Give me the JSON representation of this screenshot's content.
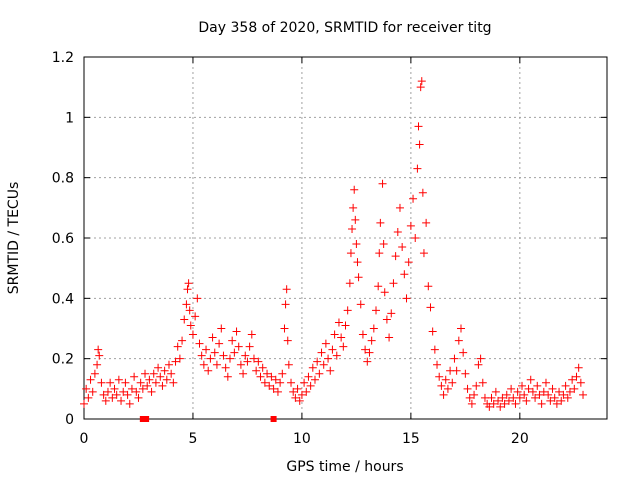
{
  "chart_data": {
    "type": "scatter",
    "title": "Day 358 of 2020, SRMTID for receiver titg",
    "xlabel": "GPS time / hours",
    "ylabel": "SRMTID / TECUs",
    "xlim": [
      0,
      24
    ],
    "ylim": [
      0,
      1.2
    ],
    "xticks": [
      0,
      5,
      10,
      15,
      20
    ],
    "xtick_labels": [
      "0",
      "5",
      "10",
      "15",
      "20"
    ],
    "yticks": [
      0,
      0.2,
      0.4,
      0.6,
      0.8,
      1,
      1.2
    ],
    "ytick_labels": [
      "0",
      "0.2",
      "0.4",
      "0.6",
      "0.8",
      "1",
      "1.2"
    ],
    "grid": true,
    "marker": "+",
    "series_color": "#ff0000",
    "series": [
      {
        "name": "SRMTID",
        "points": [
          [
            0.0,
            0.05
          ],
          [
            0.1,
            0.1
          ],
          [
            0.2,
            0.07
          ],
          [
            0.3,
            0.13
          ],
          [
            0.4,
            0.09
          ],
          [
            0.5,
            0.15
          ],
          [
            0.6,
            0.18
          ],
          [
            0.65,
            0.23
          ],
          [
            0.7,
            0.21
          ],
          [
            0.8,
            0.12
          ],
          [
            0.9,
            0.08
          ],
          [
            1.0,
            0.06
          ],
          [
            1.1,
            0.09
          ],
          [
            1.2,
            0.12
          ],
          [
            1.3,
            0.07
          ],
          [
            1.4,
            0.1
          ],
          [
            1.5,
            0.08
          ],
          [
            1.6,
            0.13
          ],
          [
            1.7,
            0.06
          ],
          [
            1.8,
            0.09
          ],
          [
            1.9,
            0.12
          ],
          [
            2.0,
            0.08
          ],
          [
            2.1,
            0.05
          ],
          [
            2.2,
            0.1
          ],
          [
            2.3,
            0.14
          ],
          [
            2.4,
            0.09
          ],
          [
            2.5,
            0.07
          ],
          [
            2.6,
            0.12
          ],
          [
            2.7,
            0.1
          ],
          [
            2.8,
            0.15
          ],
          [
            2.9,
            0.11
          ],
          [
            3.0,
            0.13
          ],
          [
            3.1,
            0.09
          ],
          [
            3.2,
            0.15
          ],
          [
            3.3,
            0.12
          ],
          [
            3.4,
            0.17
          ],
          [
            3.5,
            0.14
          ],
          [
            3.6,
            0.11
          ],
          [
            3.7,
            0.16
          ],
          [
            3.8,
            0.13
          ],
          [
            3.9,
            0.18
          ],
          [
            4.0,
            0.15
          ],
          [
            4.1,
            0.12
          ],
          [
            4.2,
            0.19
          ],
          [
            4.3,
            0.24
          ],
          [
            4.4,
            0.2
          ],
          [
            4.5,
            0.26
          ],
          [
            4.6,
            0.33
          ],
          [
            4.7,
            0.38
          ],
          [
            4.75,
            0.43
          ],
          [
            4.8,
            0.45
          ],
          [
            4.85,
            0.36
          ],
          [
            4.9,
            0.31
          ],
          [
            5.0,
            0.28
          ],
          [
            5.1,
            0.34
          ],
          [
            5.2,
            0.4
          ],
          [
            5.3,
            0.25
          ],
          [
            5.4,
            0.21
          ],
          [
            5.5,
            0.18
          ],
          [
            5.6,
            0.23
          ],
          [
            5.7,
            0.16
          ],
          [
            5.8,
            0.2
          ],
          [
            5.9,
            0.27
          ],
          [
            6.0,
            0.22
          ],
          [
            6.1,
            0.18
          ],
          [
            6.2,
            0.25
          ],
          [
            6.3,
            0.3
          ],
          [
            6.4,
            0.21
          ],
          [
            6.5,
            0.17
          ],
          [
            6.6,
            0.14
          ],
          [
            6.7,
            0.2
          ],
          [
            6.8,
            0.26
          ],
          [
            6.9,
            0.22
          ],
          [
            7.0,
            0.29
          ],
          [
            7.1,
            0.24
          ],
          [
            7.2,
            0.18
          ],
          [
            7.3,
            0.15
          ],
          [
            7.4,
            0.21
          ],
          [
            7.5,
            0.19
          ],
          [
            7.6,
            0.24
          ],
          [
            7.7,
            0.28
          ],
          [
            7.8,
            0.2
          ],
          [
            7.9,
            0.16
          ],
          [
            8.0,
            0.19
          ],
          [
            8.1,
            0.14
          ],
          [
            8.2,
            0.17
          ],
          [
            8.3,
            0.12
          ],
          [
            8.4,
            0.15
          ],
          [
            8.5,
            0.11
          ],
          [
            8.6,
            0.14
          ],
          [
            8.7,
            0.1
          ],
          [
            8.8,
            0.13
          ],
          [
            8.9,
            0.09
          ],
          [
            9.0,
            0.12
          ],
          [
            9.1,
            0.15
          ],
          [
            9.2,
            0.3
          ],
          [
            9.25,
            0.38
          ],
          [
            9.3,
            0.43
          ],
          [
            9.35,
            0.26
          ],
          [
            9.4,
            0.18
          ],
          [
            9.5,
            0.12
          ],
          [
            9.6,
            0.09
          ],
          [
            9.7,
            0.07
          ],
          [
            9.8,
            0.1
          ],
          [
            9.9,
            0.06
          ],
          [
            10.0,
            0.08
          ],
          [
            10.1,
            0.12
          ],
          [
            10.2,
            0.09
          ],
          [
            10.3,
            0.14
          ],
          [
            10.4,
            0.11
          ],
          [
            10.5,
            0.17
          ],
          [
            10.6,
            0.13
          ],
          [
            10.7,
            0.19
          ],
          [
            10.8,
            0.15
          ],
          [
            10.9,
            0.22
          ],
          [
            11.0,
            0.18
          ],
          [
            11.1,
            0.25
          ],
          [
            11.2,
            0.2
          ],
          [
            11.3,
            0.16
          ],
          [
            11.4,
            0.23
          ],
          [
            11.5,
            0.28
          ],
          [
            11.6,
            0.21
          ],
          [
            11.7,
            0.32
          ],
          [
            11.8,
            0.27
          ],
          [
            11.9,
            0.24
          ],
          [
            12.0,
            0.31
          ],
          [
            12.1,
            0.36
          ],
          [
            12.2,
            0.45
          ],
          [
            12.25,
            0.55
          ],
          [
            12.3,
            0.63
          ],
          [
            12.35,
            0.7
          ],
          [
            12.4,
            0.76
          ],
          [
            12.45,
            0.66
          ],
          [
            12.5,
            0.58
          ],
          [
            12.55,
            0.52
          ],
          [
            12.6,
            0.47
          ],
          [
            12.7,
            0.38
          ],
          [
            12.8,
            0.28
          ],
          [
            12.9,
            0.23
          ],
          [
            13.0,
            0.19
          ],
          [
            13.1,
            0.22
          ],
          [
            13.2,
            0.26
          ],
          [
            13.3,
            0.3
          ],
          [
            13.4,
            0.36
          ],
          [
            13.5,
            0.44
          ],
          [
            13.55,
            0.55
          ],
          [
            13.6,
            0.65
          ],
          [
            13.7,
            0.78
          ],
          [
            13.75,
            0.58
          ],
          [
            13.8,
            0.42
          ],
          [
            13.9,
            0.33
          ],
          [
            14.0,
            0.27
          ],
          [
            14.1,
            0.35
          ],
          [
            14.2,
            0.45
          ],
          [
            14.3,
            0.54
          ],
          [
            14.4,
            0.62
          ],
          [
            14.5,
            0.7
          ],
          [
            14.6,
            0.57
          ],
          [
            14.7,
            0.48
          ],
          [
            14.8,
            0.4
          ],
          [
            14.9,
            0.52
          ],
          [
            15.0,
            0.64
          ],
          [
            15.1,
            0.73
          ],
          [
            15.2,
            0.6
          ],
          [
            15.3,
            0.83
          ],
          [
            15.35,
            0.97
          ],
          [
            15.4,
            0.91
          ],
          [
            15.45,
            1.1
          ],
          [
            15.5,
            1.12
          ],
          [
            15.55,
            0.75
          ],
          [
            15.6,
            0.55
          ],
          [
            15.7,
            0.65
          ],
          [
            15.8,
            0.44
          ],
          [
            15.9,
            0.37
          ],
          [
            16.0,
            0.29
          ],
          [
            16.1,
            0.23
          ],
          [
            16.2,
            0.18
          ],
          [
            16.3,
            0.14
          ],
          [
            16.4,
            0.11
          ],
          [
            16.5,
            0.08
          ],
          [
            16.6,
            0.13
          ],
          [
            16.7,
            0.1
          ],
          [
            16.8,
            0.16
          ],
          [
            16.9,
            0.12
          ],
          [
            17.0,
            0.2
          ],
          [
            17.1,
            0.16
          ],
          [
            17.2,
            0.26
          ],
          [
            17.3,
            0.3
          ],
          [
            17.4,
            0.22
          ],
          [
            17.5,
            0.15
          ],
          [
            17.6,
            0.1
          ],
          [
            17.7,
            0.07
          ],
          [
            17.8,
            0.05
          ],
          [
            17.9,
            0.08
          ],
          [
            18.0,
            0.11
          ],
          [
            18.1,
            0.18
          ],
          [
            18.2,
            0.2
          ],
          [
            18.3,
            0.12
          ],
          [
            18.4,
            0.07
          ],
          [
            18.5,
            0.05
          ],
          [
            18.6,
            0.04
          ],
          [
            18.7,
            0.07
          ],
          [
            18.8,
            0.05
          ],
          [
            18.9,
            0.09
          ],
          [
            19.0,
            0.06
          ],
          [
            19.1,
            0.04
          ],
          [
            19.2,
            0.07
          ],
          [
            19.3,
            0.05
          ],
          [
            19.4,
            0.08
          ],
          [
            19.5,
            0.06
          ],
          [
            19.6,
            0.1
          ],
          [
            19.7,
            0.07
          ],
          [
            19.8,
            0.05
          ],
          [
            19.9,
            0.09
          ],
          [
            20.0,
            0.07
          ],
          [
            20.1,
            0.11
          ],
          [
            20.2,
            0.08
          ],
          [
            20.3,
            0.06
          ],
          [
            20.4,
            0.1
          ],
          [
            20.5,
            0.13
          ],
          [
            20.6,
            0.09
          ],
          [
            20.7,
            0.07
          ],
          [
            20.8,
            0.11
          ],
          [
            20.9,
            0.08
          ],
          [
            21.0,
            0.05
          ],
          [
            21.1,
            0.09
          ],
          [
            21.2,
            0.12
          ],
          [
            21.3,
            0.08
          ],
          [
            21.4,
            0.06
          ],
          [
            21.5,
            0.1
          ],
          [
            21.6,
            0.07
          ],
          [
            21.7,
            0.05
          ],
          [
            21.8,
            0.09
          ],
          [
            21.9,
            0.06
          ],
          [
            22.0,
            0.08
          ],
          [
            22.1,
            0.11
          ],
          [
            22.2,
            0.07
          ],
          [
            22.3,
            0.09
          ],
          [
            22.4,
            0.13
          ],
          [
            22.5,
            0.1
          ],
          [
            22.6,
            0.14
          ],
          [
            22.7,
            0.17
          ],
          [
            22.8,
            0.12
          ],
          [
            22.9,
            0.08
          ]
        ]
      }
    ],
    "gap_markers": [
      2.7,
      2.8,
      2.85,
      8.7
    ],
    "gap_marker_y": 0
  }
}
